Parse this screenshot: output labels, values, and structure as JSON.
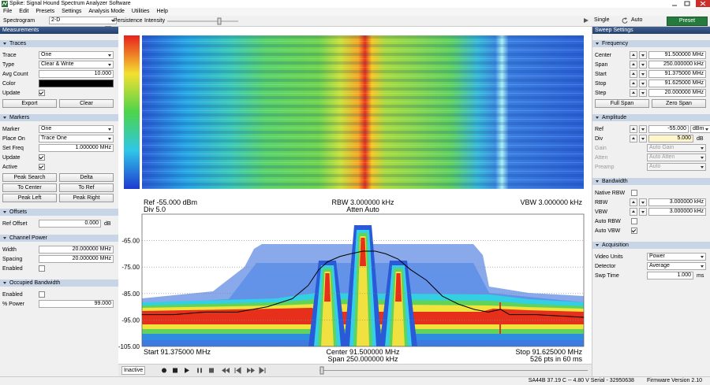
{
  "window": {
    "title": "Spike: Signal Hound Spectrum Analyzer Software"
  },
  "menu": [
    "File",
    "Edit",
    "Presets",
    "Settings",
    "Analysis Mode",
    "Utilities",
    "Help"
  ],
  "toolbar": {
    "display_label": "Spectrogram",
    "display_mode": "2-D",
    "persistence": {
      "label": "Persistence",
      "checked": true
    },
    "intensity": "Intensity",
    "single": "Single",
    "auto": "Auto",
    "preset": "Preset"
  },
  "left_panel": {
    "title": "Measurements",
    "sections": [
      {
        "title": "Traces",
        "rows": [
          {
            "label": "Trace",
            "value": "One"
          },
          {
            "label": "Type",
            "value": "Clear & Write"
          },
          {
            "label": "Avg Count",
            "value": "10.000"
          },
          {
            "label": "Color"
          },
          {
            "label": "Update",
            "checked": true
          }
        ],
        "buttons": [
          "Export",
          "Clear"
        ]
      },
      {
        "title": "Markers",
        "rows": [
          {
            "label": "Marker",
            "value": "One"
          },
          {
            "label": "Place On",
            "value": "Trace One"
          },
          {
            "label": "Set Freq",
            "value": "1.000000 MHz"
          },
          {
            "label": "Update",
            "checked": true
          },
          {
            "label": "Active",
            "checked": true
          }
        ],
        "buttons": [
          "Peak Search",
          "Delta",
          "To Center",
          "To Ref",
          "Peak Left",
          "Peak Right"
        ]
      },
      {
        "title": "Offsets",
        "rows": [
          {
            "label": "Ref Offset",
            "value": "0.000",
            "unit": "dB"
          }
        ]
      },
      {
        "title": "Channel Power",
        "rows": [
          {
            "label": "Width",
            "value": "20.000000 MHz"
          },
          {
            "label": "Spacing",
            "value": "20.000000 MHz"
          },
          {
            "label": "Enabled",
            "checked": false
          }
        ]
      },
      {
        "title": "Occupied Bandwidth",
        "rows": [
          {
            "label": "Enabled",
            "checked": false
          },
          {
            "label": "% Power",
            "value": "99.000"
          }
        ]
      }
    ]
  },
  "right_panel": {
    "title": "Sweep Settings",
    "sections": [
      {
        "title": "Frequency",
        "rows": [
          {
            "label": "Center",
            "value": "91.500000 MHz"
          },
          {
            "label": "Span",
            "value": "250.000000 kHz"
          },
          {
            "label": "Start",
            "value": "91.375000 MHz"
          },
          {
            "label": "Stop",
            "value": "91.625000 MHz"
          },
          {
            "label": "Step",
            "value": "20.000000 MHz"
          }
        ],
        "buttons": [
          "Full Span",
          "Zero Span"
        ]
      },
      {
        "title": "Amplitude",
        "rows": [
          {
            "label": "Ref",
            "value": "-55.000",
            "unit": "dBm"
          },
          {
            "label": "Div",
            "value": "5.000",
            "unit": "dB"
          },
          {
            "label": "Gain",
            "value": "Auto Gain"
          },
          {
            "label": "Atten",
            "value": "Auto Atten"
          },
          {
            "label": "Preamp",
            "value": "Auto"
          }
        ]
      },
      {
        "title": "Bandwidth",
        "rows": [
          {
            "label": "Native RBW",
            "checked": false
          },
          {
            "label": "RBW",
            "value": "3.000000 kHz"
          },
          {
            "label": "VBW",
            "value": "3.000000 kHz"
          },
          {
            "label": "Auto RBW",
            "checked": false
          },
          {
            "label": "Auto VBW",
            "checked": true
          }
        ]
      },
      {
        "title": "Acquisition",
        "rows": [
          {
            "label": "Video Units",
            "value": "Power"
          },
          {
            "label": "Detector",
            "value": "Average"
          },
          {
            "label": "Swp Time",
            "value": "1.000",
            "unit": "ms"
          }
        ]
      }
    ]
  },
  "chart_data": {
    "type": "line",
    "annotations": {
      "ref": "Ref -55.000 dBm",
      "div": "Div 5.0",
      "rbw": "RBW 3.000000 kHz",
      "atten": "Atten Auto",
      "vbw": "VBW 3.000000 kHz",
      "start": "Start 91.375000 MHz",
      "center": "Center 91.500000 MHz",
      "span": "Span 250.000000 kHz",
      "stop": "Stop 91.625000 MHz",
      "points": "526 pts in 60 ms"
    },
    "x": [
      91.375,
      91.393,
      91.411,
      91.429,
      91.446,
      91.46,
      91.469,
      91.475,
      91.48,
      91.487,
      91.493,
      91.5,
      91.507,
      91.513,
      91.52,
      91.527,
      91.536,
      91.545,
      91.554,
      91.563,
      91.571,
      91.578,
      91.583,
      91.598,
      91.625
    ],
    "values": [
      -93,
      -93,
      -92,
      -92,
      -90,
      -87,
      -82,
      -76,
      -73,
      -71,
      -70,
      -69,
      -69,
      -70,
      -72,
      -76,
      -80,
      -86,
      -89,
      -91,
      -92,
      -91,
      -93,
      -93,
      -94
    ],
    "color": "#000000",
    "xlim": [
      91.375,
      91.625
    ],
    "ylim": [
      -105,
      -55
    ],
    "yticks": [
      {
        "value": -65,
        "label": "-65.00"
      },
      {
        "value": -75,
        "label": "-75.00"
      },
      {
        "value": -85,
        "label": "-85.00"
      },
      {
        "value": -95,
        "label": "-95.00"
      },
      {
        "value": -105,
        "label": "-105.00"
      }
    ],
    "grid": true
  },
  "transport": {
    "status": "Inactive"
  },
  "status_bar": {
    "device": "SA44B   37.19 C -- 4.80 V  Serial - 32950638",
    "firmware": "Firmware Version 2.10"
  }
}
